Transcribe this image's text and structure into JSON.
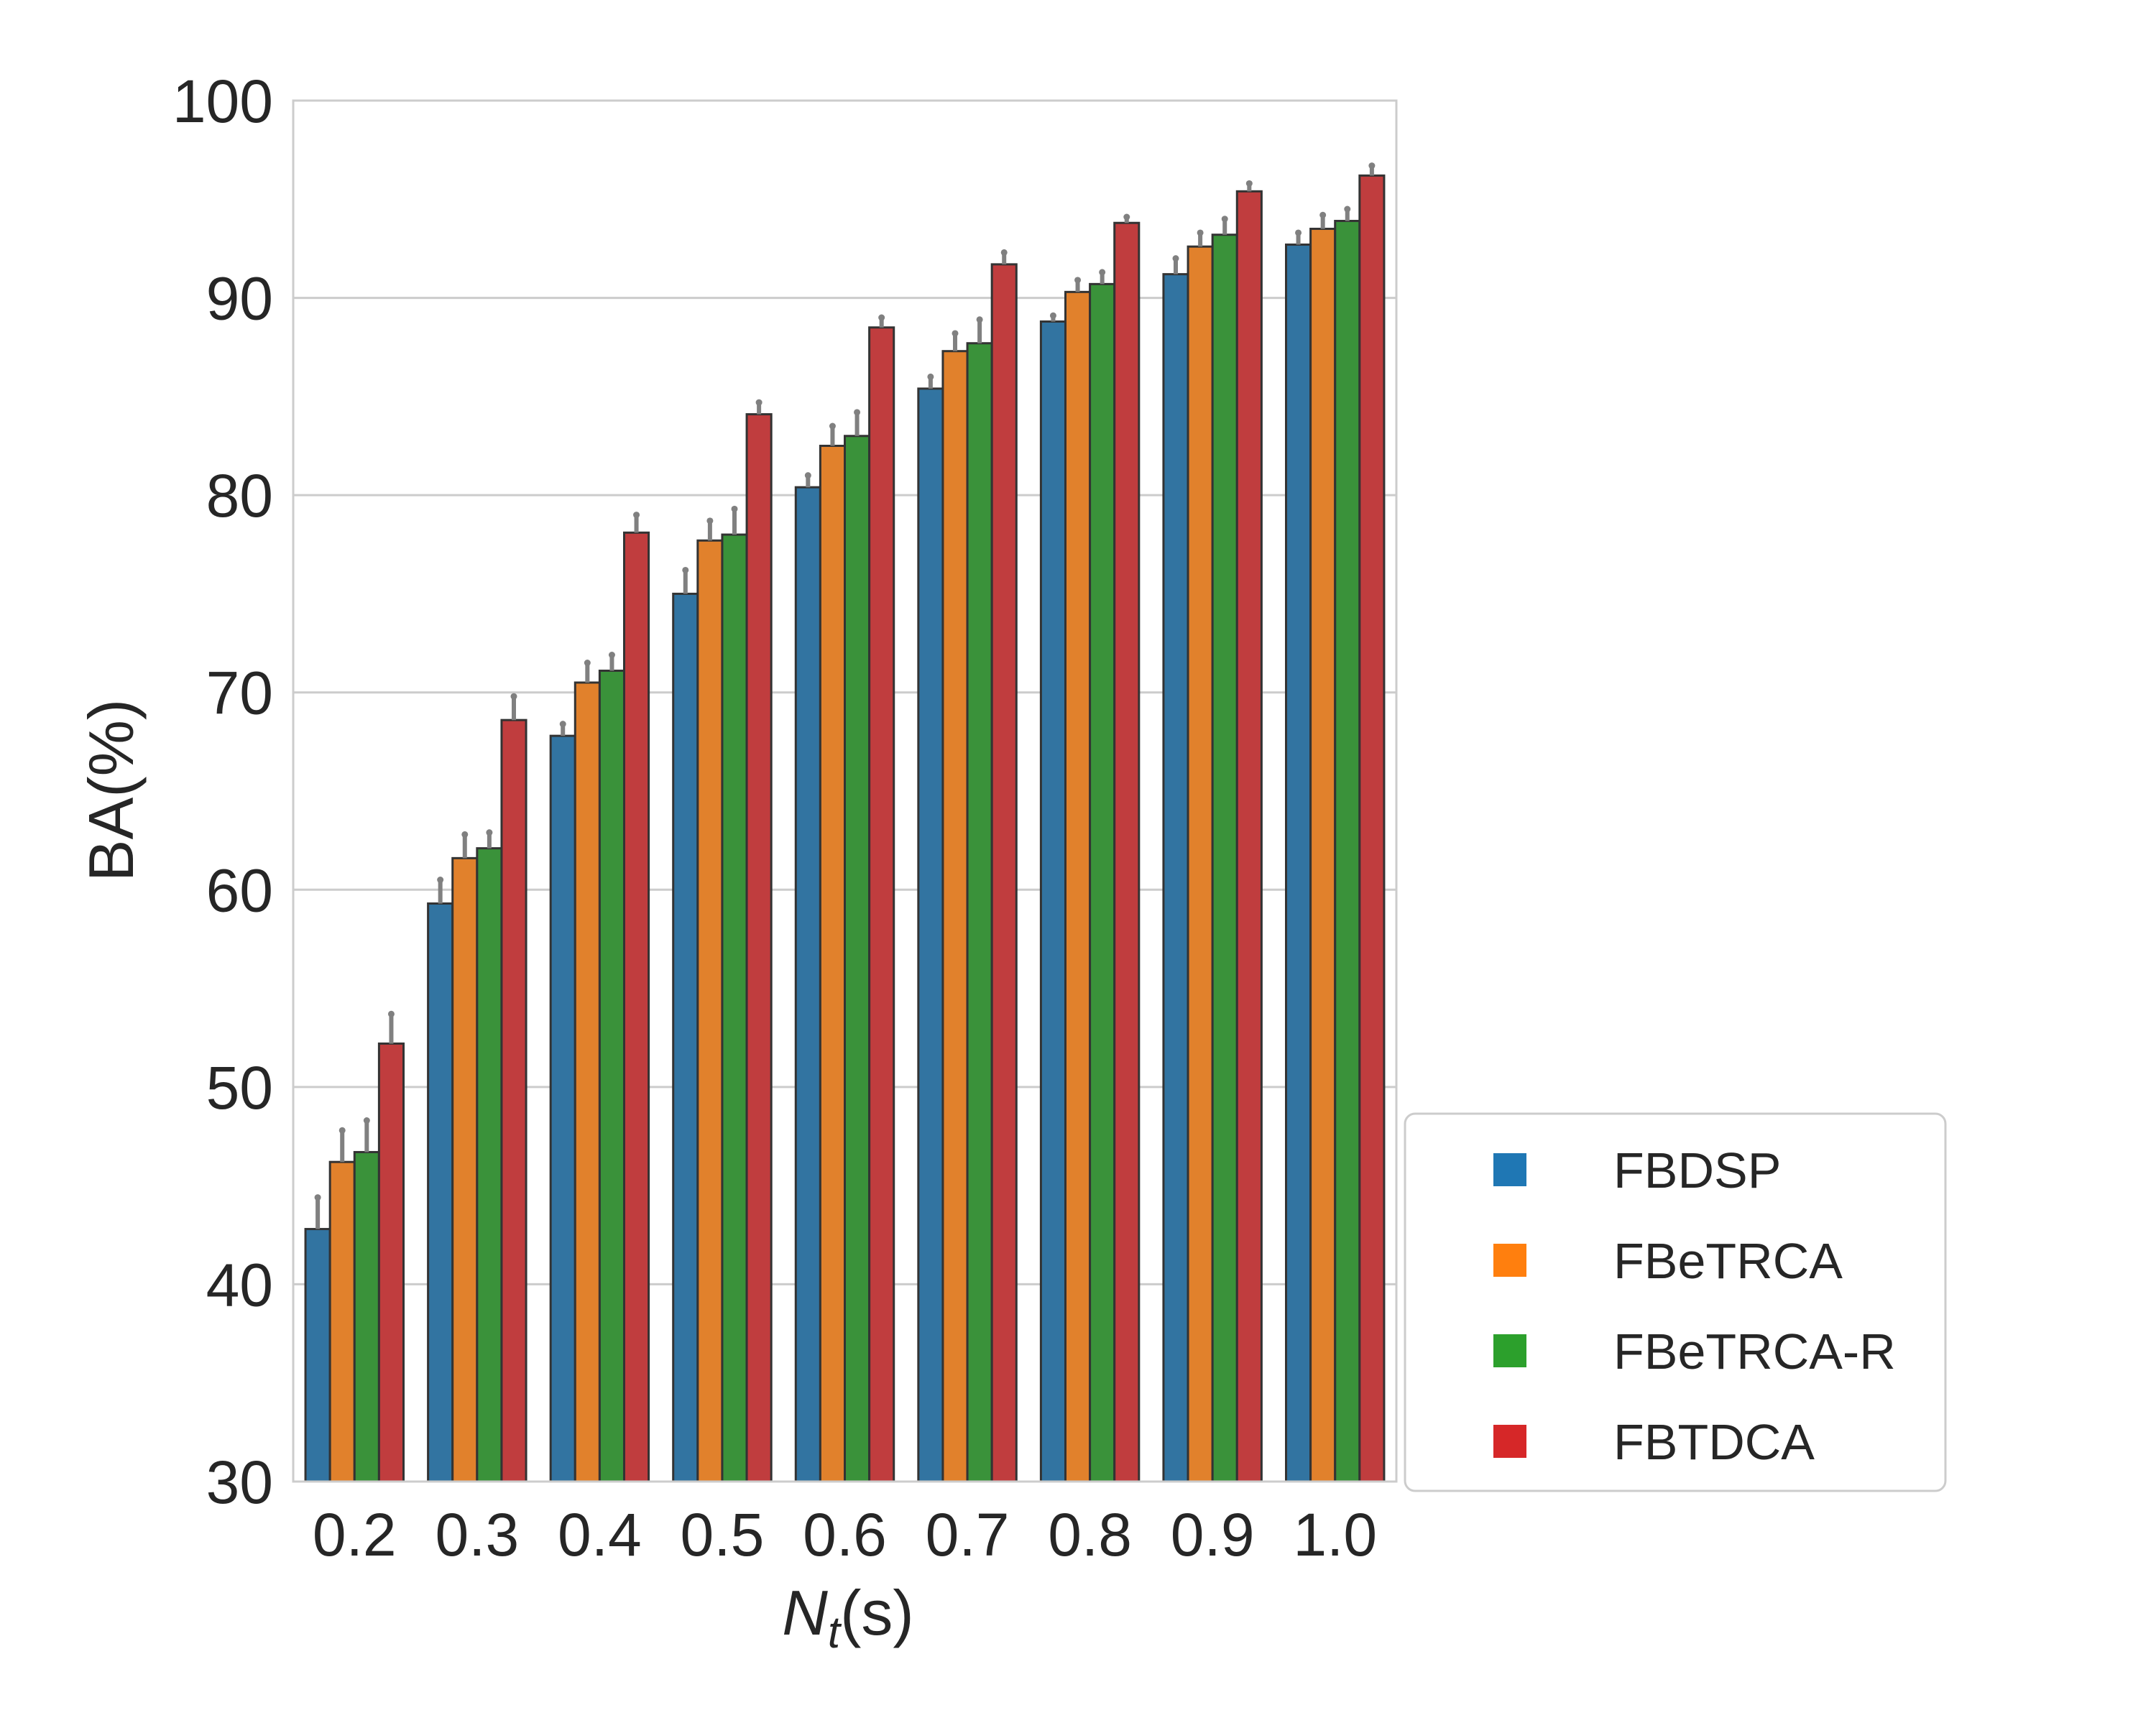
{
  "chart_data": {
    "type": "bar",
    "xlabel_main": "N",
    "xlabel_sub": "t",
    "xlabel_unit": "(s)",
    "ylabel": "BA(%)",
    "ylim": [
      30,
      100
    ],
    "yticks": [
      30,
      40,
      50,
      60,
      70,
      80,
      90,
      100
    ],
    "grid": "y",
    "legend_position": "outside-bottom-right",
    "categories": [
      "0.2",
      "0.3",
      "0.4",
      "0.5",
      "0.6",
      "0.7",
      "0.8",
      "0.9",
      "1.0"
    ],
    "series": [
      {
        "name": "FBDSP",
        "color": "#3274a1",
        "legend_color": "#1f77b4",
        "values": [
          42.8,
          59.3,
          67.8,
          75.0,
          80.4,
          85.4,
          88.8,
          91.2,
          92.7
        ],
        "errors": [
          1.6,
          1.2,
          0.6,
          1.2,
          0.6,
          0.6,
          0.3,
          0.8,
          0.6
        ]
      },
      {
        "name": "FBeTRCA",
        "color": "#e1812c",
        "legend_color": "#ff7f0e",
        "values": [
          46.2,
          61.6,
          70.5,
          77.7,
          82.5,
          87.3,
          90.3,
          92.6,
          93.5
        ],
        "errors": [
          1.6,
          1.2,
          1.0,
          1.0,
          1.0,
          0.9,
          0.6,
          0.7,
          0.7
        ]
      },
      {
        "name": "FBeTRCA-R",
        "color": "#3a923a",
        "legend_color": "#2ca02c",
        "values": [
          46.7,
          62.1,
          71.1,
          78.0,
          83.0,
          87.7,
          90.7,
          93.2,
          93.9
        ],
        "errors": [
          1.6,
          0.8,
          0.8,
          1.3,
          1.2,
          1.2,
          0.6,
          0.8,
          0.6
        ]
      },
      {
        "name": "FBTDCA",
        "color": "#c03d3e",
        "legend_color": "#d62728",
        "values": [
          52.2,
          68.6,
          78.1,
          84.1,
          88.5,
          91.7,
          93.8,
          95.4,
          96.2
        ],
        "errors": [
          1.5,
          1.2,
          0.9,
          0.6,
          0.5,
          0.6,
          0.3,
          0.4,
          0.5
        ]
      }
    ]
  }
}
